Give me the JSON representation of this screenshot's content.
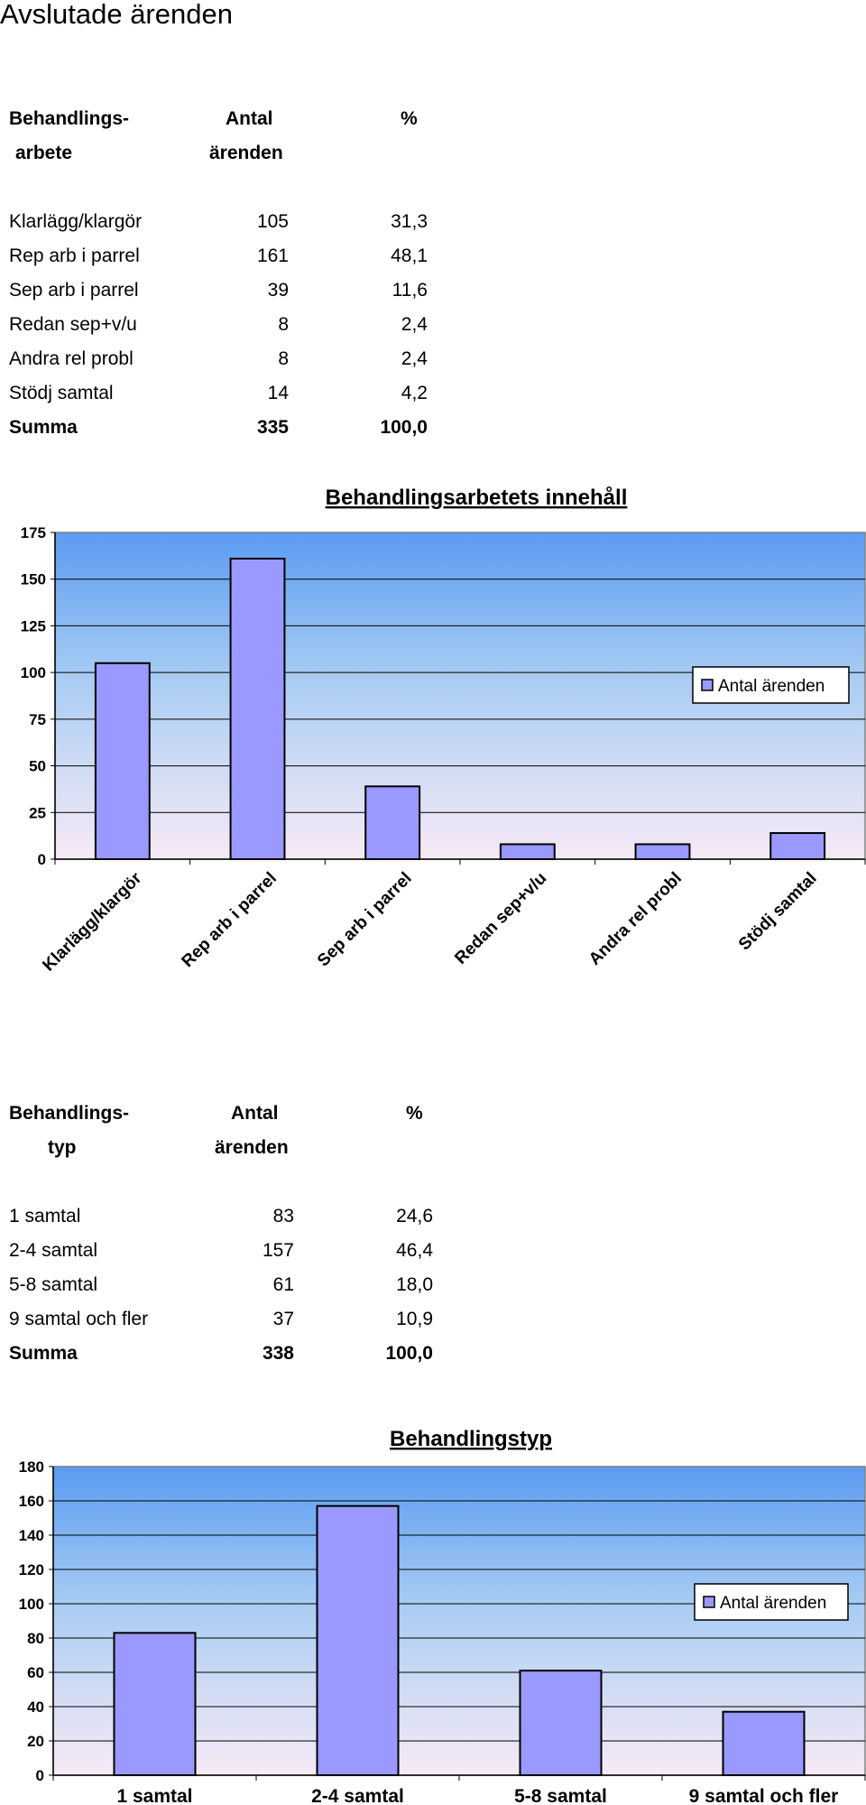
{
  "page_title": "Avslutade ärenden",
  "table1": {
    "header": {
      "col1_line1": "Behandlings-",
      "col1_line2": "arbete",
      "col2_line1": "Antal",
      "col2_line2": "ärenden",
      "col3": "%"
    },
    "rows": [
      {
        "label": "Klarlägg/klargör",
        "count": "105",
        "pct": "31,3"
      },
      {
        "label": "Rep arb i parrel",
        "count": "161",
        "pct": "48,1"
      },
      {
        "label": "Sep arb i parrel",
        "count": "39",
        "pct": "11,6"
      },
      {
        "label": "Redan sep+v/u",
        "count": "8",
        "pct": "2,4"
      },
      {
        "label": "Andra rel probl",
        "count": "8",
        "pct": "2,4"
      },
      {
        "label": "Stödj samtal",
        "count": "14",
        "pct": "4,2"
      }
    ],
    "total": {
      "label": "Summa",
      "count": "335",
      "pct": "100,0"
    }
  },
  "table2": {
    "header": {
      "col1_line1": "Behandlings-",
      "col1_line2": "typ",
      "col2_line1": "Antal",
      "col2_line2": "ärenden",
      "col3": "%"
    },
    "rows": [
      {
        "label": "1 samtal",
        "count": "83",
        "pct": "24,6"
      },
      {
        "label": "2-4 samtal",
        "count": "157",
        "pct": "46,4"
      },
      {
        "label": "5-8 samtal",
        "count": "61",
        "pct": "18,0"
      },
      {
        "label": "9 samtal och fler",
        "count": "37",
        "pct": "10,9"
      }
    ],
    "total": {
      "label": "Summa",
      "count": "338",
      "pct": "100,0"
    }
  },
  "colors": {
    "bar_fill": "#9999ff",
    "bg_top": "#5b9bf2",
    "bg_bottom": "#f7eaf6",
    "gridline": "#000000"
  },
  "chart_data": [
    {
      "type": "bar",
      "title": "Behandlingsarbetets innehåll",
      "categories": [
        "Klarlägg/klargör",
        "Rep arb i parrel",
        "Sep arb i parrel",
        "Redan sep+v/u",
        "Andra rel probl",
        "Stödj samtal"
      ],
      "series": [
        {
          "name": "Antal ärenden",
          "values": [
            105,
            161,
            39,
            8,
            8,
            14
          ]
        }
      ],
      "ylim": [
        0,
        175
      ],
      "yticks": [
        0,
        25,
        50,
        75,
        100,
        125,
        150,
        175
      ],
      "xlabel": "",
      "ylabel": "",
      "grid": true,
      "legend": "right",
      "x_tick_rotation": "rotated"
    },
    {
      "type": "bar",
      "title": "Behandlingstyp",
      "categories": [
        "1 samtal",
        "2-4 samtal",
        "5-8 samtal",
        "9 samtal och fler"
      ],
      "series": [
        {
          "name": "Antal ärenden",
          "values": [
            83,
            157,
            61,
            37
          ]
        }
      ],
      "ylim": [
        0,
        180
      ],
      "yticks": [
        0,
        20,
        40,
        60,
        80,
        100,
        120,
        140,
        160,
        180
      ],
      "xlabel": "",
      "ylabel": "",
      "grid": true,
      "legend": "right",
      "x_tick_rotation": "none"
    }
  ]
}
